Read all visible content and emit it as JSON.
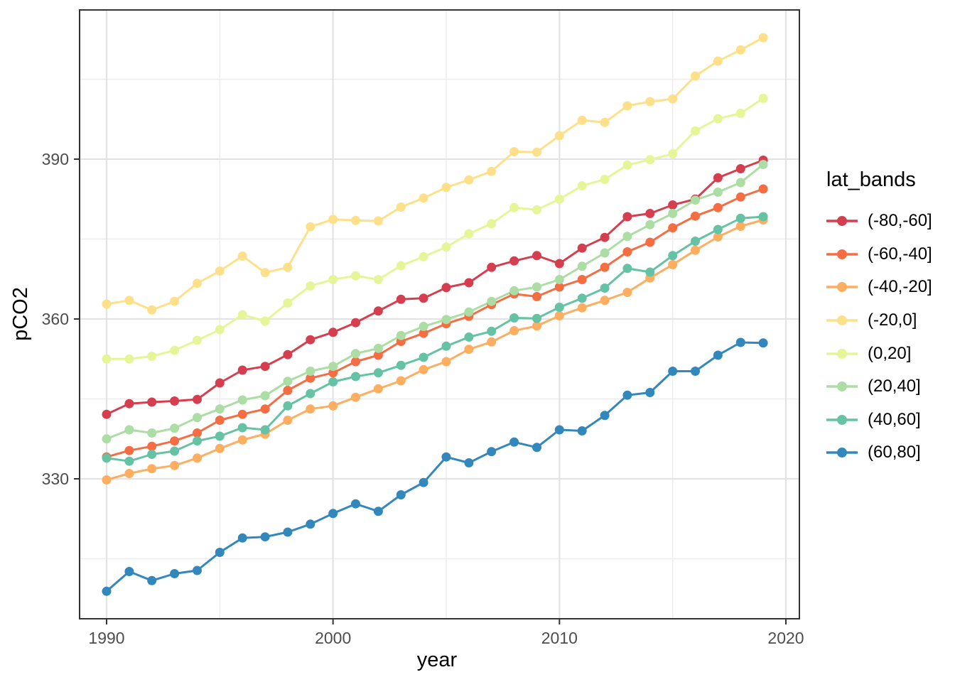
{
  "chart_data": {
    "type": "line",
    "title": "",
    "xlabel": "year",
    "ylabel": "pCO2",
    "legend_title": "lat_bands",
    "legend_position": "right",
    "grid": true,
    "x": [
      1990,
      1991,
      1992,
      1993,
      1994,
      1995,
      1996,
      1997,
      1998,
      1999,
      2000,
      2001,
      2002,
      2003,
      2004,
      2005,
      2006,
      2007,
      2008,
      2009,
      2010,
      2011,
      2012,
      2013,
      2014,
      2015,
      2016,
      2017,
      2018,
      2019
    ],
    "x_ticks": [
      1990,
      2000,
      2010,
      2020
    ],
    "x_minor_ticks": [
      1995,
      2005,
      2015
    ],
    "y_ticks": [
      330,
      360,
      390
    ],
    "y_minor_ticks": [
      315,
      345,
      375,
      405
    ],
    "xlim": [
      1988.8,
      2020.6
    ],
    "ylim": [
      303.7,
      418.0
    ],
    "series": [
      {
        "name": "(-80,-60]",
        "color": "#d53e4f",
        "values": [
          342.1,
          344.1,
          344.4,
          344.6,
          344.9,
          348.0,
          350.4,
          351.1,
          353.3,
          356.1,
          357.5,
          359.3,
          361.5,
          363.7,
          363.9,
          365.9,
          366.8,
          369.7,
          370.9,
          371.9,
          370.4,
          373.3,
          375.3,
          379.2,
          379.8,
          381.4,
          382.5,
          386.5,
          388.2,
          389.8
        ]
      },
      {
        "name": "(-60,-40]",
        "color": "#f46d43",
        "values": [
          334.1,
          335.3,
          336.1,
          337.1,
          338.6,
          341.0,
          342.1,
          343.1,
          346.6,
          348.9,
          349.9,
          352.0,
          353.2,
          355.8,
          357.3,
          359.1,
          360.5,
          362.7,
          364.7,
          364.2,
          366.0,
          367.4,
          369.7,
          372.6,
          374.4,
          377.1,
          379.3,
          380.9,
          382.9,
          384.4
        ]
      },
      {
        "name": "(-40,-20]",
        "color": "#fdae61",
        "values": [
          329.8,
          331.0,
          331.9,
          332.5,
          333.9,
          335.7,
          337.3,
          338.4,
          341.0,
          343.1,
          343.7,
          345.3,
          346.9,
          348.4,
          350.5,
          352.0,
          354.3,
          355.7,
          357.8,
          358.7,
          360.6,
          362.1,
          363.5,
          365.0,
          367.7,
          370.2,
          372.9,
          375.4,
          377.4,
          378.6
        ]
      },
      {
        "name": "(-20,0]",
        "color": "#fee08b",
        "values": [
          362.8,
          363.5,
          361.7,
          363.3,
          366.7,
          369.0,
          371.8,
          368.7,
          369.7,
          377.3,
          378.7,
          378.5,
          378.4,
          381.0,
          382.7,
          384.7,
          386.1,
          387.7,
          391.4,
          391.3,
          394.4,
          397.3,
          396.9,
          400.0,
          400.8,
          401.3,
          405.6,
          408.4,
          410.5,
          412.8
        ]
      },
      {
        "name": "(0,20]",
        "color": "#e6f598",
        "values": [
          352.5,
          352.5,
          353.0,
          354.1,
          356.0,
          358.0,
          360.8,
          359.6,
          363.0,
          366.2,
          367.4,
          368.1,
          367.4,
          370.0,
          371.7,
          373.5,
          376.0,
          377.9,
          380.9,
          380.5,
          382.5,
          385.0,
          386.2,
          388.9,
          389.9,
          391.0,
          395.3,
          397.6,
          398.6,
          401.4
        ]
      },
      {
        "name": "(20,40]",
        "color": "#abdda4",
        "values": [
          337.5,
          339.2,
          338.6,
          339.5,
          341.5,
          343.1,
          344.8,
          345.6,
          348.3,
          350.2,
          351.1,
          353.5,
          354.5,
          356.9,
          358.6,
          359.9,
          361.3,
          363.3,
          365.3,
          366.0,
          367.4,
          369.9,
          372.4,
          375.5,
          377.7,
          379.8,
          382.3,
          383.8,
          385.6,
          389.0
        ]
      },
      {
        "name": "(40,60]",
        "color": "#66c2a5",
        "values": [
          333.9,
          333.3,
          334.6,
          335.2,
          337.1,
          338.0,
          339.6,
          339.2,
          343.7,
          346.0,
          348.2,
          349.2,
          349.9,
          351.3,
          352.8,
          354.9,
          356.6,
          357.7,
          360.2,
          360.1,
          362.2,
          363.9,
          365.8,
          369.5,
          368.8,
          371.9,
          374.6,
          376.8,
          378.9,
          379.2
        ]
      },
      {
        "name": "(60,80]",
        "color": "#3288bd",
        "values": [
          308.9,
          312.6,
          310.9,
          312.2,
          312.8,
          316.2,
          318.9,
          319.1,
          320.0,
          321.5,
          323.5,
          325.3,
          323.9,
          327.0,
          329.3,
          334.1,
          333.0,
          335.1,
          336.9,
          335.9,
          339.2,
          339.0,
          341.9,
          345.7,
          346.2,
          350.2,
          350.2,
          353.2,
          355.6,
          355.5
        ]
      }
    ]
  }
}
